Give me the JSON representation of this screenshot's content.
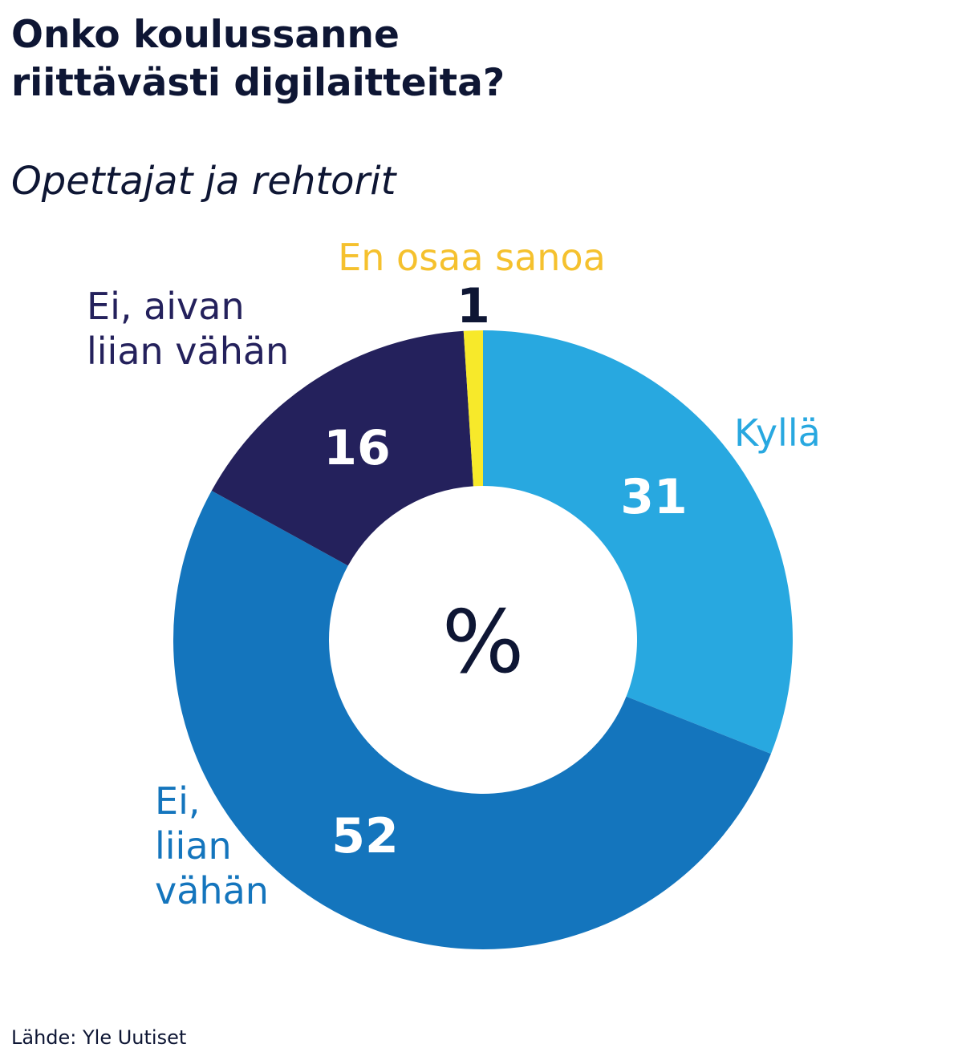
{
  "title_lines": [
    "Onko koulussanne",
    "riittävästi digilaitteita?"
  ],
  "subtitle": "Opettajat ja rehtorit",
  "source": "Lähde: Yle Uutiset",
  "center_label": "%",
  "chart_data": {
    "type": "pie",
    "title": "Onko koulussanne riittävästi digilaitteita?",
    "subtitle": "Opettajat ja rehtorit",
    "unit": "%",
    "donut": true,
    "slices": [
      {
        "name": "Kyllä",
        "label_lines": [
          "Kyllä"
        ],
        "value": 31,
        "color": "#28a8e0"
      },
      {
        "name": "Ei, liian vähän",
        "label_lines": [
          "Ei,",
          "liian",
          "vähän"
        ],
        "value": 52,
        "color": "#1475bd"
      },
      {
        "name": "Ei, aivan liian vähän",
        "label_lines": [
          "Ei, aivan",
          "liian vähän"
        ],
        "value": 16,
        "color": "#24215c"
      },
      {
        "name": "En osaa sanoa",
        "label_lines": [
          "En osaa sanoa"
        ],
        "value": 1,
        "color": "#f7e92a"
      }
    ],
    "label_colors": [
      "#28a8e0",
      "#1475bd",
      "#24215c",
      "#f5c12e"
    ],
    "value_colors": [
      "#ffffff",
      "#ffffff",
      "#ffffff",
      "#0e1634"
    ]
  }
}
